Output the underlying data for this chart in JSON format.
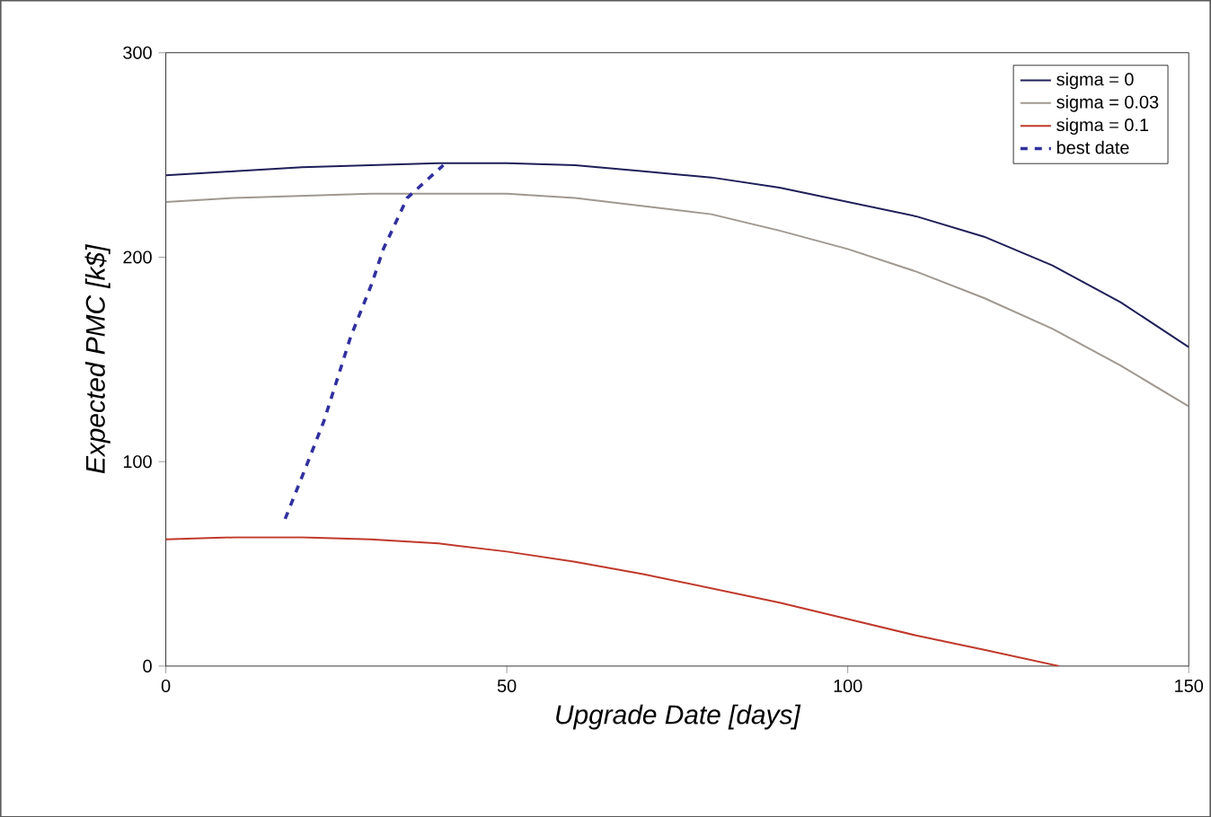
{
  "chart_data": {
    "type": "line",
    "xlabel": "Upgrade Date [days]",
    "ylabel": "Expected PMC [k$]",
    "xlim": [
      0,
      150
    ],
    "ylim": [
      0,
      300
    ],
    "xticks": [
      0,
      50,
      100,
      150
    ],
    "yticks": [
      0,
      100,
      200,
      300
    ],
    "grid": false,
    "legend": "top right",
    "marker": "none",
    "series": [
      {
        "name": "sigma = 0",
        "color": "#1f1f5a",
        "line_style": "solid",
        "x": [
          0,
          10,
          20,
          30,
          40,
          50,
          60,
          70,
          80,
          90,
          100,
          110,
          120,
          130,
          140,
          150
        ],
        "values": [
          240,
          242,
          244,
          245,
          246,
          246,
          245,
          242,
          239,
          234,
          227,
          220,
          210,
          196,
          178,
          156
        ]
      },
      {
        "name": "sigma = 0.03",
        "color": "#a09890",
        "line_style": "solid",
        "x": [
          0,
          10,
          20,
          30,
          40,
          50,
          60,
          70,
          80,
          90,
          100,
          110,
          120,
          130,
          140,
          150
        ],
        "values": [
          227,
          229,
          230,
          231,
          231,
          231,
          229,
          225,
          221,
          213,
          204,
          193,
          180,
          165,
          147,
          127
        ]
      },
      {
        "name": "sigma = 0.1",
        "color": "#c0392b",
        "line_style": "solid",
        "x": [
          0,
          10,
          20,
          30,
          40,
          50,
          60,
          70,
          80,
          90,
          100,
          110,
          120,
          131
        ],
        "values": [
          62,
          63,
          63,
          62,
          60,
          56,
          51,
          45,
          38,
          31,
          23,
          15,
          8,
          0
        ]
      },
      {
        "name": "best date",
        "color": "#3030a0",
        "line_style": "dashed",
        "x": [
          17.5,
          20.5,
          23.2,
          27.1,
          30.2,
          31.9,
          35.4,
          40.7
        ],
        "values": [
          72,
          97,
          120,
          161,
          187,
          204,
          229,
          245
        ]
      }
    ]
  }
}
